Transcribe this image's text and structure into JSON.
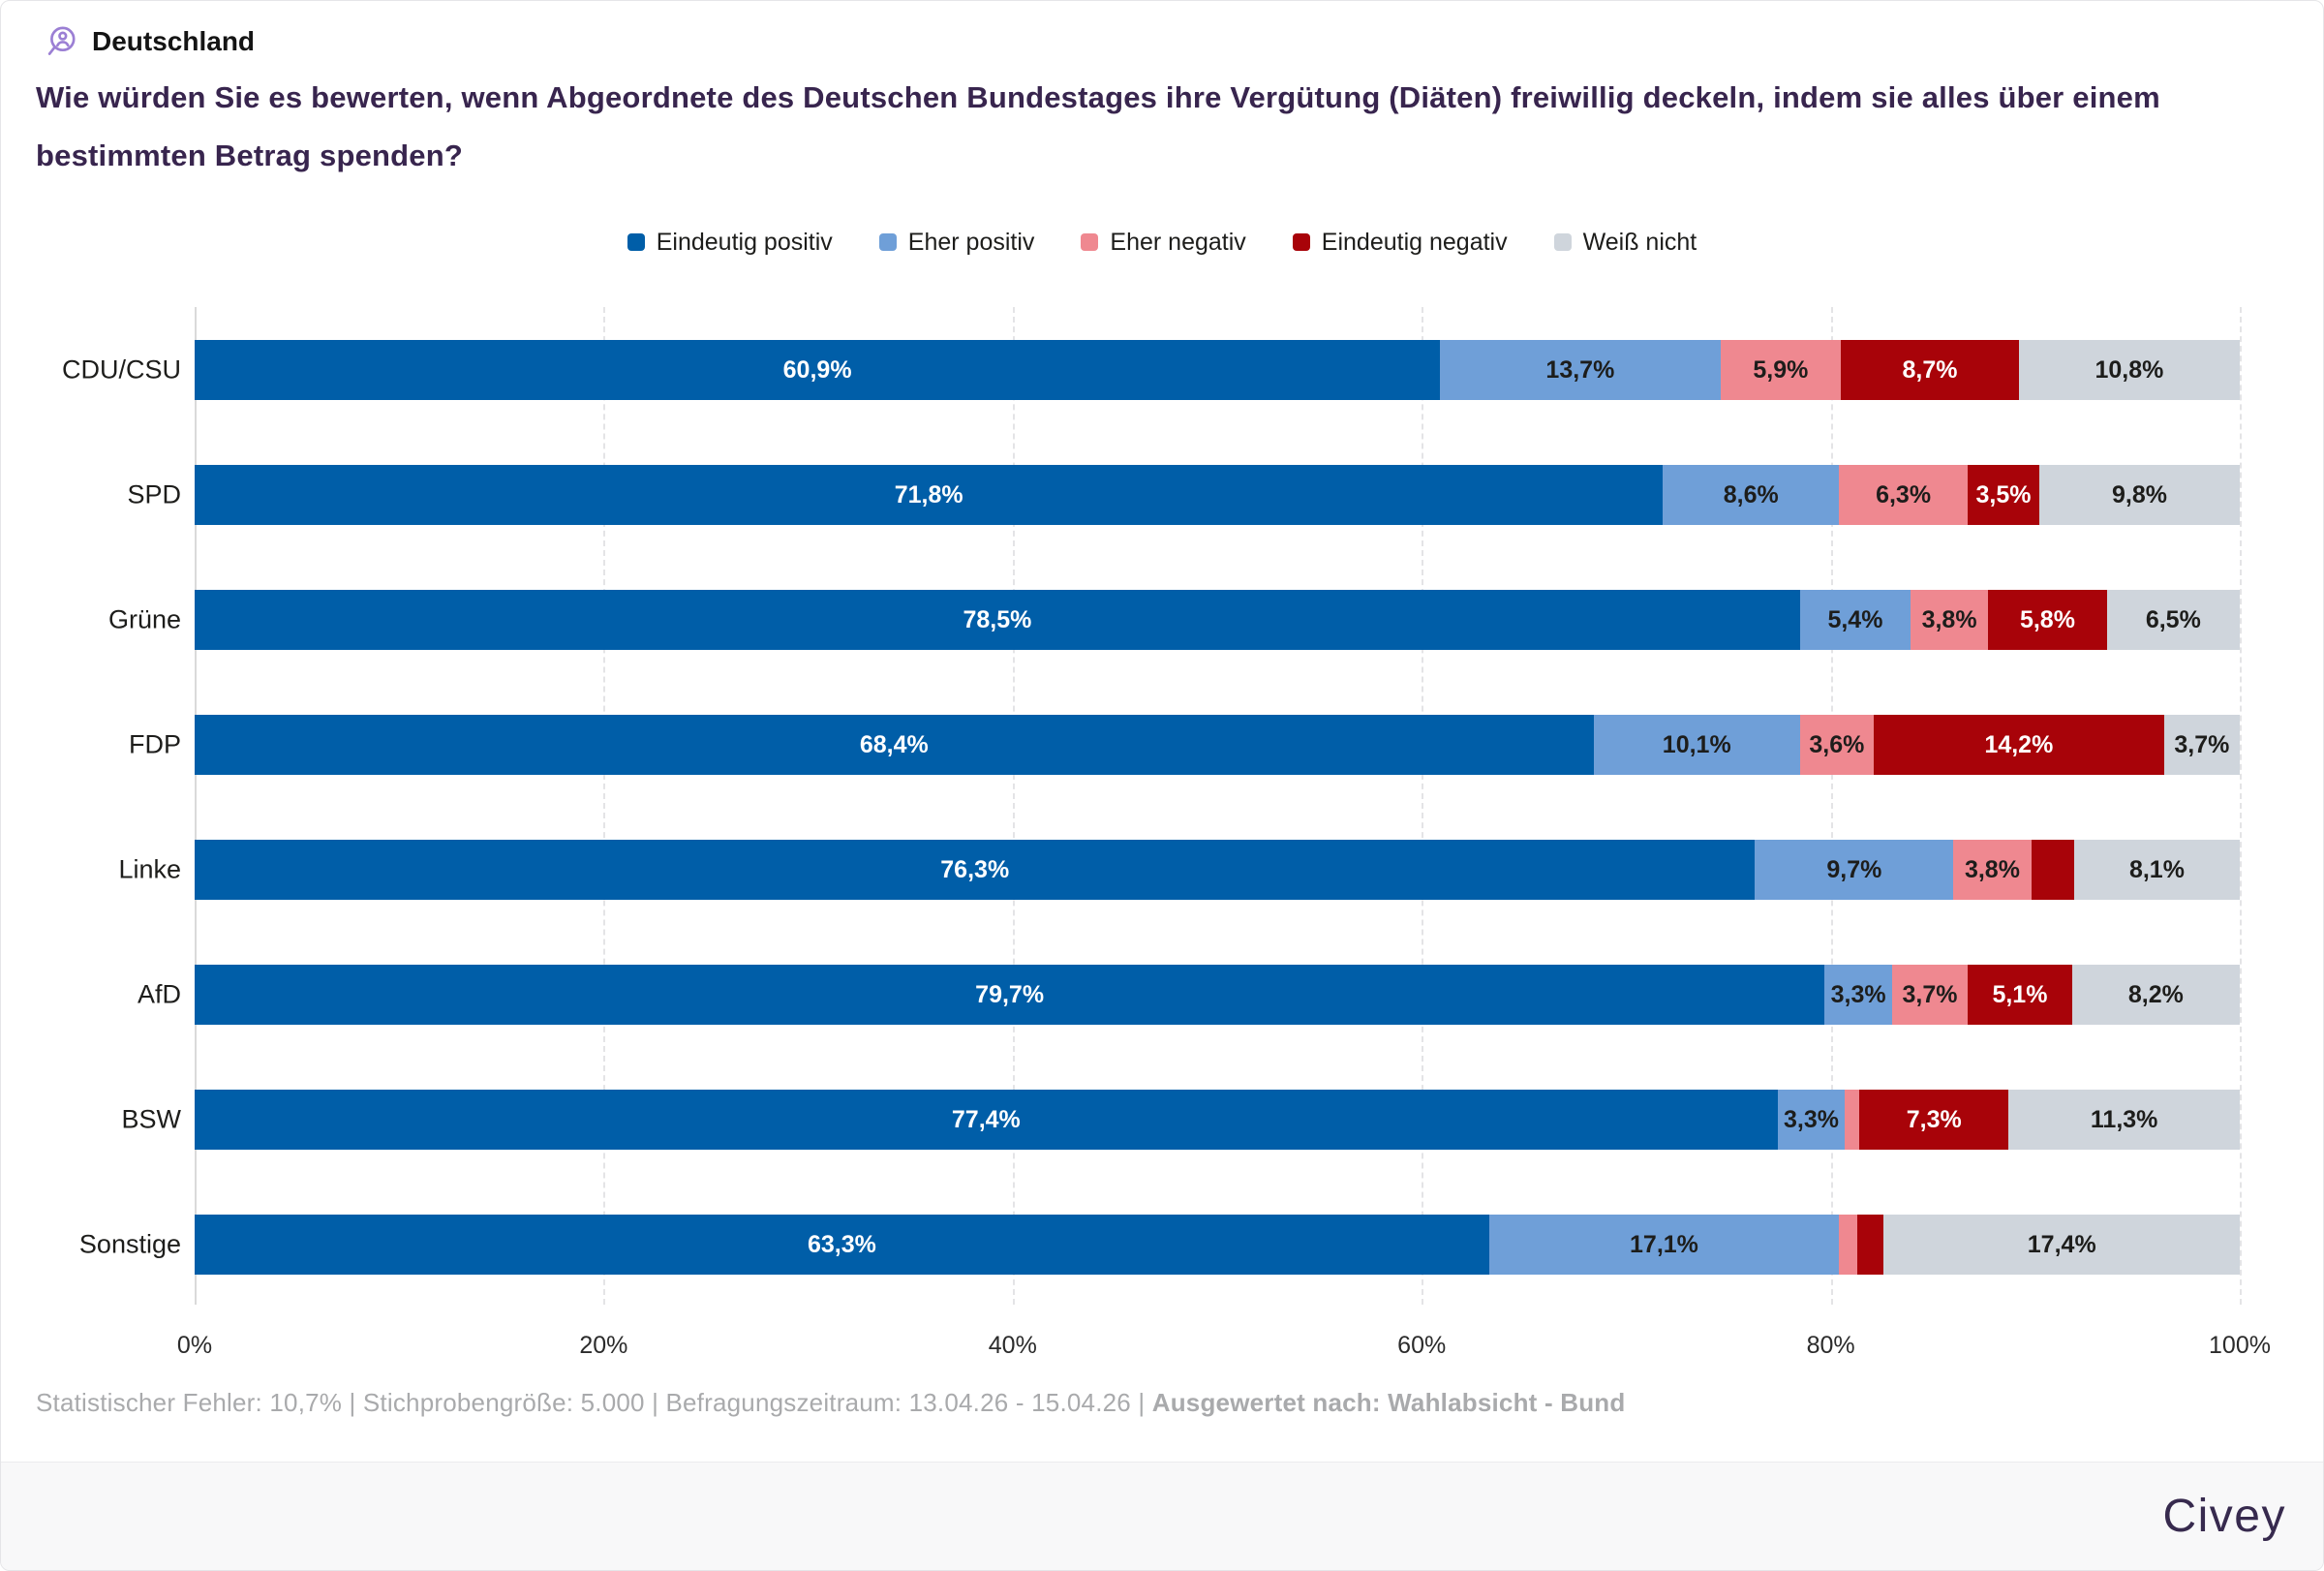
{
  "header": {
    "region_label": "Deutschland"
  },
  "title": "Wie würden Sie es bewerten, wenn Abgeordnete des Deutschen Bundestages ihre Vergütung (Diäten) freiwillig deckeln, indem sie alles über einem bestimmten Betrag spenden?",
  "legend": [
    {
      "label": "Eindeutig positiv",
      "color": "#005ea8"
    },
    {
      "label": "Eher positiv",
      "color": "#6f9fd8"
    },
    {
      "label": "Eher negativ",
      "color": "#ef8890"
    },
    {
      "label": "Eindeutig negativ",
      "color": "#a80309"
    },
    {
      "label": "Weiß nicht",
      "color": "#cfd5dc"
    }
  ],
  "chart_data": {
    "type": "bar",
    "orientation": "horizontal",
    "stacked": true,
    "categories": [
      "CDU/CSU",
      "SPD",
      "Grüne",
      "FDP",
      "Linke",
      "AfD",
      "BSW",
      "Sonstige"
    ],
    "series": [
      {
        "name": "Eindeutig positiv",
        "color": "#005ea8",
        "label_color": "#ffffff",
        "values": [
          60.9,
          71.8,
          78.5,
          68.4,
          76.3,
          79.7,
          77.4,
          63.3
        ]
      },
      {
        "name": "Eher positiv",
        "color": "#6f9fd8",
        "label_color": "#1d1d1b",
        "values": [
          13.7,
          8.6,
          5.4,
          10.1,
          9.7,
          3.3,
          3.3,
          17.1
        ]
      },
      {
        "name": "Eher negativ",
        "color": "#ef8890",
        "label_color": "#1d1d1b",
        "values": [
          5.9,
          6.3,
          3.8,
          3.6,
          3.8,
          3.7,
          0.7,
          0.9
        ]
      },
      {
        "name": "Eindeutig negativ",
        "color": "#a80309",
        "label_color": "#ffffff",
        "values": [
          8.7,
          3.5,
          5.8,
          14.2,
          2.1,
          5.1,
          7.3,
          1.3
        ]
      },
      {
        "name": "Weiß nicht",
        "color": "#cfd5dc",
        "label_color": "#1d1d1b",
        "values": [
          10.8,
          9.8,
          6.5,
          3.7,
          8.1,
          8.2,
          11.3,
          17.4
        ]
      }
    ],
    "segment_labels": [
      [
        "60,9%",
        "13,7%",
        "5,9%",
        "8,7%",
        "10,8%"
      ],
      [
        "71,8%",
        "8,6%",
        "6,3%",
        "3,5%",
        "9,8%"
      ],
      [
        "78,5%",
        "5,4%",
        "3,8%",
        "5,8%",
        "6,5%"
      ],
      [
        "68,4%",
        "10,1%",
        "3,6%",
        "14,2%",
        "3,7%"
      ],
      [
        "76,3%",
        "9,7%",
        "3,8%",
        "",
        "8,1%"
      ],
      [
        "79,7%",
        "3,3%",
        "3,7%",
        "5,1%",
        "8,2%"
      ],
      [
        "77,4%",
        "3,3%",
        "",
        "7,3%",
        "11,3%"
      ],
      [
        "63,3%",
        "17,1%",
        "",
        "",
        "17,4%"
      ]
    ],
    "x_ticks": [
      "0%",
      "20%",
      "40%",
      "60%",
      "80%",
      "100%"
    ],
    "xlim": [
      0,
      100
    ],
    "grid": "dashed-vertical",
    "legend_position": "top"
  },
  "footnote": {
    "text_regular": "Statistischer Fehler: 10,7% | Stichprobengröße: 5.000 | Befragungszeitraum: 13.04.26 - 15.04.26 | ",
    "text_bold": "Ausgewertet nach: Wahlabsicht - Bund"
  },
  "branding": {
    "logo_text": "Civey"
  },
  "colors": {
    "title": "#38254e",
    "icon_purple": "#9b7fd4",
    "footnote_gray": "#a9aaac",
    "brand_band": "#f8f8f9"
  }
}
